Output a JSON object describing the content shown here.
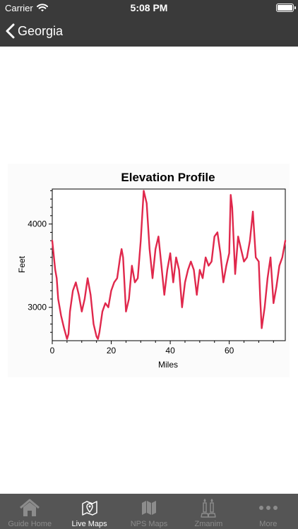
{
  "status_bar": {
    "carrier": "Carrier",
    "time": "5:08 PM",
    "battery_level": 1.0
  },
  "nav": {
    "back_label": "Georgia"
  },
  "chart_data": {
    "type": "line",
    "title": "Elevation Profile",
    "xlabel": "Miles",
    "ylabel": "Feet",
    "xlim": [
      0,
      79
    ],
    "ylim": [
      2600,
      4420
    ],
    "x_ticks": [
      0,
      20,
      40,
      60
    ],
    "y_ticks": [
      3000,
      4000
    ],
    "grid": false,
    "color": "#e0284c",
    "series": [
      {
        "x": [
          0,
          1,
          1.5,
          2,
          3,
          4,
          5,
          5.5,
          6,
          7,
          8,
          9,
          10,
          11,
          12,
          13,
          14,
          15,
          15.5,
          16,
          17,
          18,
          19,
          20,
          21,
          22,
          23,
          23.5,
          24,
          25,
          26,
          27,
          28,
          29,
          30,
          31,
          32,
          33,
          34,
          35,
          36,
          37,
          38,
          39,
          40,
          41,
          42,
          43,
          44,
          45,
          46,
          47,
          48,
          49,
          50,
          51,
          52,
          53,
          54,
          55,
          56,
          57,
          58,
          59,
          60,
          60.5,
          61,
          62,
          63,
          64,
          65,
          66,
          67,
          68,
          69,
          70,
          70.5,
          71,
          72,
          73,
          74,
          75,
          76,
          77,
          78,
          79
        ],
        "y": [
          3800,
          3450,
          3350,
          3100,
          2900,
          2750,
          2620,
          2680,
          2950,
          3200,
          3300,
          3150,
          2950,
          3100,
          3350,
          3150,
          2800,
          2650,
          2620,
          2700,
          2950,
          3050,
          3000,
          3200,
          3300,
          3350,
          3600,
          3700,
          3600,
          2950,
          3100,
          3500,
          3300,
          3350,
          3800,
          4400,
          4250,
          3700,
          3350,
          3700,
          3850,
          3500,
          3150,
          3450,
          3650,
          3300,
          3600,
          3450,
          3000,
          3300,
          3450,
          3550,
          3450,
          3150,
          3450,
          3350,
          3600,
          3500,
          3550,
          3850,
          3900,
          3650,
          3300,
          3500,
          3650,
          4350,
          4200,
          3400,
          3850,
          3700,
          3550,
          3600,
          3800,
          4150,
          3600,
          3550,
          3100,
          2750,
          3000,
          3350,
          3600,
          3050,
          3250,
          3500,
          3600,
          3800
        ]
      }
    ]
  },
  "tabs": [
    {
      "label": "Guide Home",
      "icon": "house-icon",
      "active": false
    },
    {
      "label": "Live Maps",
      "icon": "map-pin-icon",
      "active": true
    },
    {
      "label": "NPS Maps",
      "icon": "folded-map-icon",
      "active": false
    },
    {
      "label": "Zmanim",
      "icon": "candles-icon",
      "active": false
    },
    {
      "label": "More",
      "icon": "more-dots-icon",
      "active": false
    }
  ]
}
